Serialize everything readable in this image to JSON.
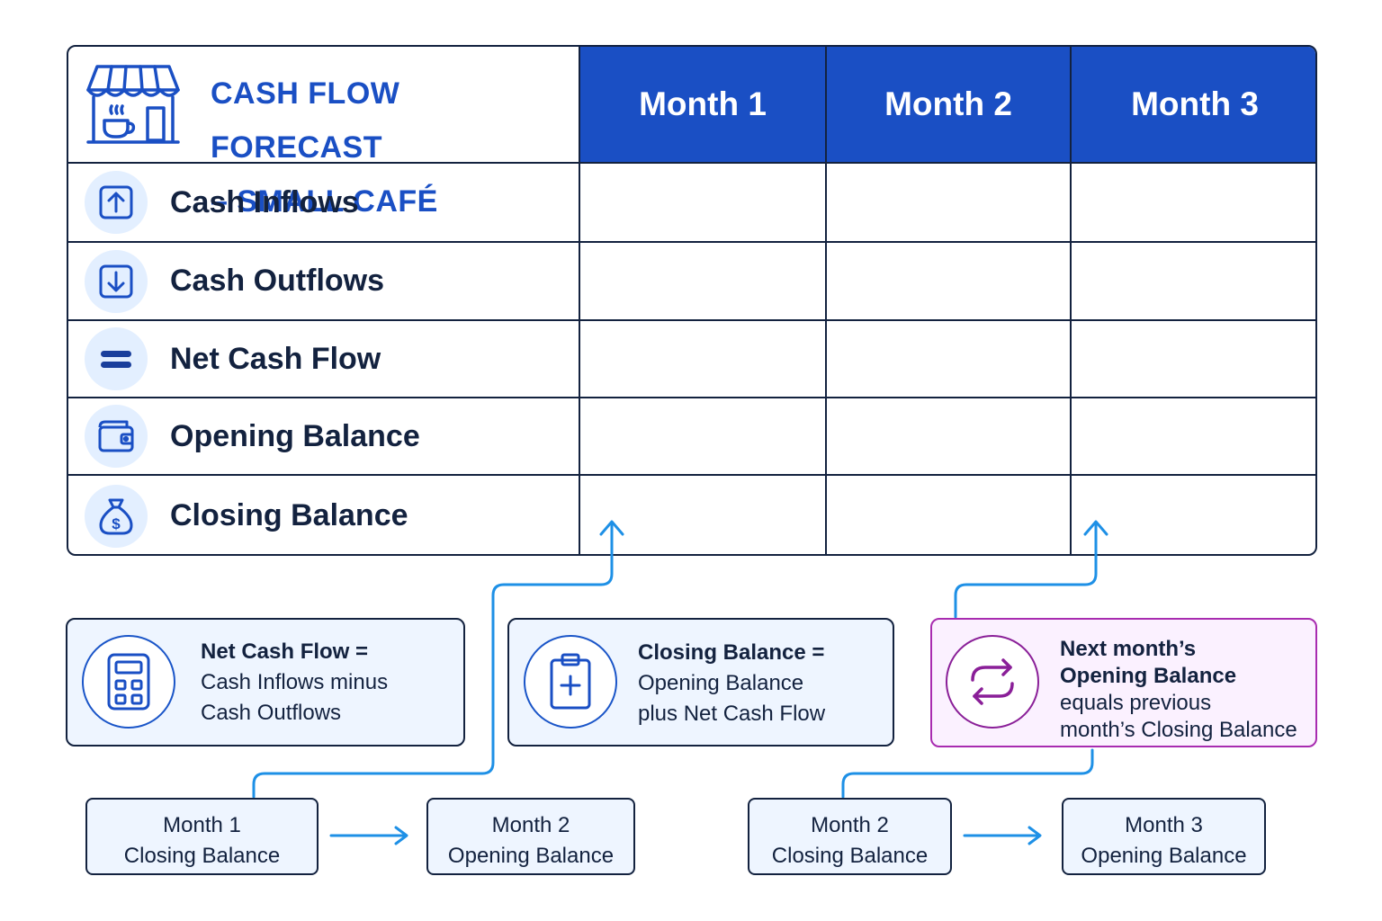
{
  "table": {
    "title_line1": "CASH FLOW FORECAST",
    "title_line2": "– SMALL CAFÉ",
    "title_icon": "cafe-storefront-icon",
    "months": [
      "Month 1",
      "Month 2",
      "Month 3"
    ],
    "rows": [
      {
        "label": "Cash Inflows",
        "icon": "arrow-up-icon"
      },
      {
        "label": "Cash Outflows",
        "icon": "arrow-down-icon"
      },
      {
        "label": "Net Cash Flow",
        "icon": "equals-icon"
      },
      {
        "label": "Opening Balance",
        "icon": "wallet-icon"
      },
      {
        "label": "Closing Balance",
        "icon": "money-bag-icon"
      }
    ]
  },
  "notes": {
    "net_cash_flow": {
      "bold": "Net Cash Flow =",
      "line2": "Cash Inflows minus",
      "line3": "Cash Outflows",
      "icon": "calculator-icon"
    },
    "closing_balance": {
      "bold": "Closing Balance =",
      "line2": "Opening Balance",
      "line3": "plus Net Cash Flow",
      "icon": "clipboard-plus-icon"
    },
    "next_month": {
      "bold1": "Next month’s",
      "bold2": "Opening Balance",
      "line3": "equals previous",
      "line4": "month’s Closing Balance",
      "icon": "cycle-arrows-icon"
    }
  },
  "flow": [
    {
      "line1": "Month 1",
      "line2": "Closing Balance"
    },
    {
      "line1": "Month 2",
      "line2": "Opening Balance"
    },
    {
      "line1": "Month 2",
      "line2": "Closing Balance"
    },
    {
      "line1": "Month 3",
      "line2": "Opening Balance"
    }
  ],
  "colors": {
    "header_blue": "#1a4fc4",
    "arrow_blue": "#1e90e6",
    "accent_purple": "#a82cb0",
    "border_dark": "#13223f"
  }
}
